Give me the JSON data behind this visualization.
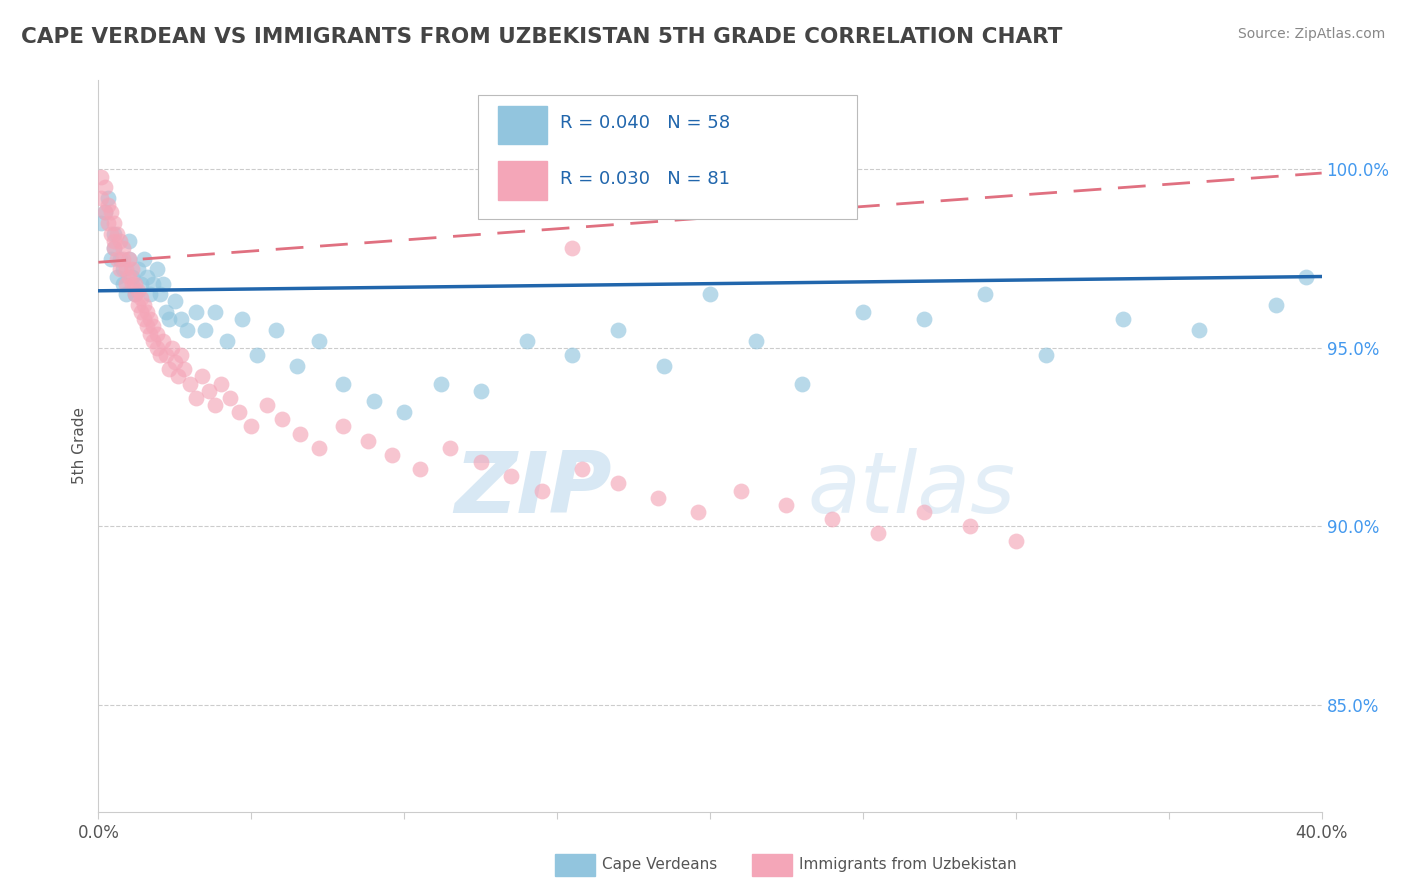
{
  "title": "CAPE VERDEAN VS IMMIGRANTS FROM UZBEKISTAN 5TH GRADE CORRELATION CHART",
  "source": "Source: ZipAtlas.com",
  "ylabel": "5th Grade",
  "ytick_labels": [
    "100.0%",
    "95.0%",
    "90.0%",
    "85.0%"
  ],
  "ytick_values": [
    1.0,
    0.95,
    0.9,
    0.85
  ],
  "xlim": [
    0.0,
    0.4
  ],
  "ylim": [
    0.82,
    1.025
  ],
  "legend_r1": "R = 0.040",
  "legend_n1": "N = 58",
  "legend_r2": "R = 0.030",
  "legend_n2": "N = 81",
  "legend_label1": "Cape Verdeans",
  "legend_label2": "Immigrants from Uzbekistan",
  "blue_color": "#92c5de",
  "pink_color": "#f4a6b8",
  "trend_blue": "#2166ac",
  "trend_pink": "#e07080",
  "blue_scatter_x": [
    0.001,
    0.002,
    0.003,
    0.004,
    0.005,
    0.005,
    0.006,
    0.007,
    0.008,
    0.008,
    0.009,
    0.01,
    0.01,
    0.011,
    0.012,
    0.013,
    0.014,
    0.015,
    0.016,
    0.017,
    0.018,
    0.019,
    0.02,
    0.021,
    0.022,
    0.023,
    0.025,
    0.027,
    0.029,
    0.032,
    0.035,
    0.038,
    0.042,
    0.047,
    0.052,
    0.058,
    0.065,
    0.072,
    0.08,
    0.09,
    0.1,
    0.112,
    0.125,
    0.14,
    0.155,
    0.17,
    0.185,
    0.2,
    0.215,
    0.23,
    0.25,
    0.27,
    0.29,
    0.31,
    0.335,
    0.36,
    0.385,
    0.395
  ],
  "blue_scatter_y": [
    0.985,
    0.988,
    0.992,
    0.975,
    0.982,
    0.978,
    0.97,
    0.975,
    0.968,
    0.972,
    0.965,
    0.98,
    0.975,
    0.97,
    0.965,
    0.972,
    0.968,
    0.975,
    0.97,
    0.965,
    0.968,
    0.972,
    0.965,
    0.968,
    0.96,
    0.958,
    0.963,
    0.958,
    0.955,
    0.96,
    0.955,
    0.96,
    0.952,
    0.958,
    0.948,
    0.955,
    0.945,
    0.952,
    0.94,
    0.935,
    0.932,
    0.94,
    0.938,
    0.952,
    0.948,
    0.955,
    0.945,
    0.965,
    0.952,
    0.94,
    0.96,
    0.958,
    0.965,
    0.948,
    0.958,
    0.955,
    0.962,
    0.97
  ],
  "pink_scatter_x": [
    0.001,
    0.001,
    0.002,
    0.002,
    0.003,
    0.003,
    0.004,
    0.004,
    0.005,
    0.005,
    0.005,
    0.006,
    0.006,
    0.007,
    0.007,
    0.008,
    0.008,
    0.009,
    0.009,
    0.01,
    0.01,
    0.011,
    0.011,
    0.012,
    0.012,
    0.013,
    0.013,
    0.014,
    0.014,
    0.015,
    0.015,
    0.016,
    0.016,
    0.017,
    0.017,
    0.018,
    0.018,
    0.019,
    0.019,
    0.02,
    0.021,
    0.022,
    0.023,
    0.024,
    0.025,
    0.026,
    0.027,
    0.028,
    0.03,
    0.032,
    0.034,
    0.036,
    0.038,
    0.04,
    0.043,
    0.046,
    0.05,
    0.055,
    0.06,
    0.066,
    0.072,
    0.08,
    0.088,
    0.096,
    0.105,
    0.115,
    0.125,
    0.135,
    0.145,
    0.158,
    0.17,
    0.183,
    0.196,
    0.21,
    0.225,
    0.24,
    0.255,
    0.27,
    0.285,
    0.3,
    0.155
  ],
  "pink_scatter_y": [
    0.998,
    0.992,
    0.995,
    0.988,
    0.985,
    0.99,
    0.982,
    0.988,
    0.98,
    0.985,
    0.978,
    0.982,
    0.975,
    0.98,
    0.972,
    0.978,
    0.975,
    0.972,
    0.968,
    0.975,
    0.97,
    0.968,
    0.972,
    0.965,
    0.968,
    0.962,
    0.966,
    0.96,
    0.964,
    0.958,
    0.962,
    0.956,
    0.96,
    0.954,
    0.958,
    0.952,
    0.956,
    0.95,
    0.954,
    0.948,
    0.952,
    0.948,
    0.944,
    0.95,
    0.946,
    0.942,
    0.948,
    0.944,
    0.94,
    0.936,
    0.942,
    0.938,
    0.934,
    0.94,
    0.936,
    0.932,
    0.928,
    0.934,
    0.93,
    0.926,
    0.922,
    0.928,
    0.924,
    0.92,
    0.916,
    0.922,
    0.918,
    0.914,
    0.91,
    0.916,
    0.912,
    0.908,
    0.904,
    0.91,
    0.906,
    0.902,
    0.898,
    0.904,
    0.9,
    0.896,
    0.978
  ],
  "watermark_zip": "ZIP",
  "watermark_atlas": "atlas",
  "background_color": "#ffffff",
  "grid_color": "#cccccc"
}
